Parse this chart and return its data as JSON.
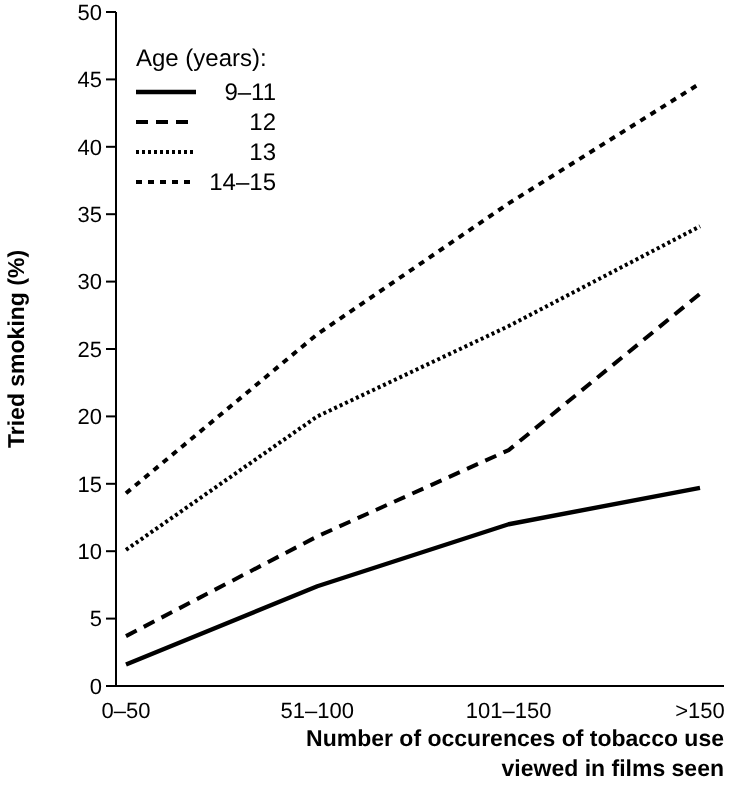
{
  "chart_data": {
    "type": "line",
    "xlabel": "Number of occurences of tobacco use viewed in films seen",
    "ylabel": "Tried smoking (%)",
    "legend_title": "Age (years):",
    "legend": "top left",
    "grid": false,
    "marker": "none",
    "categories": [
      "0–50",
      "51–100",
      "101–150",
      ">150"
    ],
    "ylim": [
      0,
      50
    ],
    "yticks": [
      0,
      5,
      10,
      15,
      20,
      25,
      30,
      35,
      40,
      45,
      50
    ],
    "series": [
      {
        "name": "9–11",
        "color": "#000000",
        "line_style": "solid",
        "values": [
          1.6,
          7.4,
          12,
          14.7
        ]
      },
      {
        "name": "12",
        "color": "#000000",
        "line_style": "dashed",
        "values": [
          3.7,
          11.1,
          17.5,
          29.1
        ]
      },
      {
        "name": "13",
        "color": "#000000",
        "line_style": "dotted",
        "values": [
          10.1,
          20,
          26.7,
          34.1
        ]
      },
      {
        "name": "14–15",
        "color": "#000000",
        "line_style": "dashdot",
        "values": [
          14.3,
          26.1,
          35.8,
          44.7
        ]
      }
    ]
  }
}
